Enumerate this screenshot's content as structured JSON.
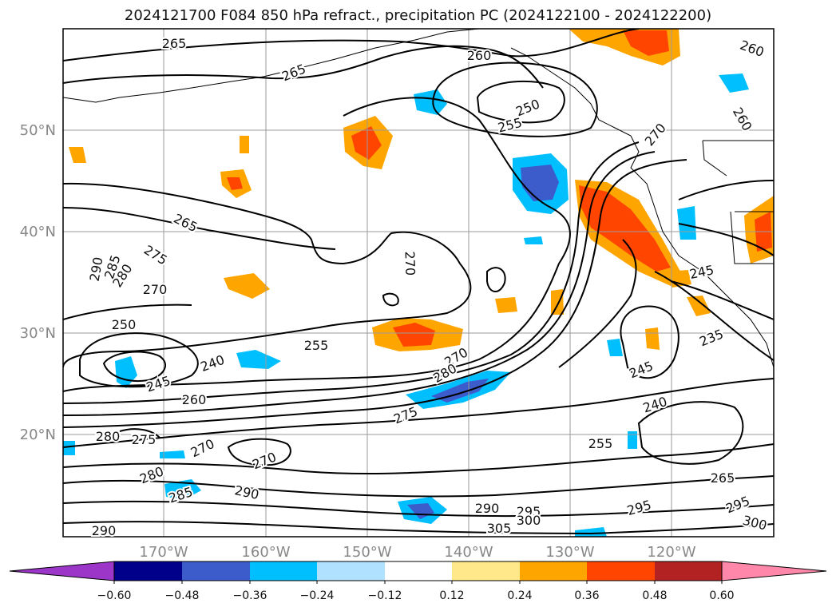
{
  "title": "2024121700 F084 850 hPa refract., precipitation PC (2024122100 - 2024122200)",
  "lat_labels": [
    "50°N",
    "40°N",
    "30°N",
    "20°N"
  ],
  "lon_labels": [
    "170°W",
    "160°W",
    "150°W",
    "140°W",
    "130°W",
    "120°W"
  ],
  "contour_labels": [
    "265",
    "265",
    "260",
    "260",
    "250",
    "255",
    "270",
    "260",
    "265",
    "275",
    "290",
    "285",
    "280",
    "270",
    "250",
    "270",
    "255",
    "270",
    "280",
    "240",
    "245",
    "260",
    "275",
    "245",
    "235",
    "240",
    "255",
    "280",
    "275",
    "270",
    "270",
    "280",
    "285",
    "290",
    "290",
    "295",
    "305",
    "300",
    "295",
    "265",
    "295",
    "300",
    "290",
    "245"
  ],
  "colorbar": {
    "tick_labels": [
      "−0.60",
      "−0.48",
      "−0.36",
      "−0.24",
      "−0.12",
      "0.12",
      "0.24",
      "0.36",
      "0.48",
      "0.60"
    ],
    "colors": [
      "#9b36c9",
      "#00008b",
      "#3c5ccb",
      "#00bfff",
      "#b0e2ff",
      "#ffffff",
      "#ffe88a",
      "#ffa500",
      "#ff4500",
      "#b22222",
      "#ff88aa"
    ]
  }
}
